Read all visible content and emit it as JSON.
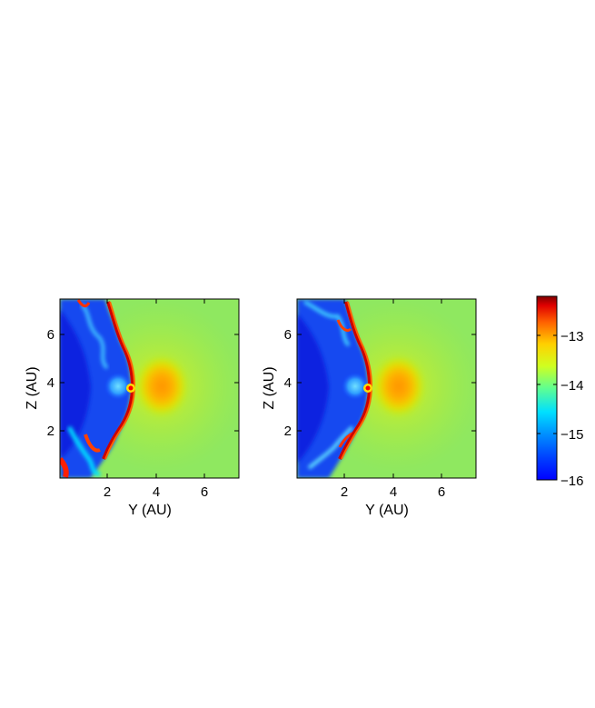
{
  "chart_data": [
    {
      "type": "heatmap",
      "panel": "left",
      "xlabel": "Y (AU)",
      "ylabel": "Z (AU)",
      "xlim": [
        0,
        7.5
      ],
      "ylim": [
        0,
        7.5
      ],
      "xticks": [
        2,
        4,
        6
      ],
      "yticks": [
        2,
        4,
        6
      ],
      "xtick_labels": [
        "2",
        "4",
        "6"
      ],
      "ytick_labels": [
        "2",
        "4",
        "6"
      ],
      "features": {
        "bow_shock_center": [
          2.9,
          3.7
        ],
        "bow_shock_front_y": 3.3,
        "bright_core_extent_y": [
          3.2,
          4.8
        ],
        "bright_core_extent_z": [
          2.3,
          5.0
        ],
        "ambient_log_value": -14.0,
        "core_log_value": -13.4,
        "cavity_log_value": -15.9
      }
    },
    {
      "type": "heatmap",
      "panel": "right",
      "xlabel": "Y (AU)",
      "ylabel": "Z (AU)",
      "xlim": [
        0,
        7.5
      ],
      "ylim": [
        0,
        7.5
      ],
      "xticks": [
        2,
        4,
        6
      ],
      "yticks": [
        2,
        4,
        6
      ],
      "xtick_labels": [
        "2",
        "4",
        "6"
      ],
      "ytick_labels": [
        "2",
        "4",
        "6"
      ],
      "features": {
        "bow_shock_center": [
          2.9,
          3.7
        ],
        "bow_shock_front_y": 3.3,
        "bright_core_extent_y": [
          3.2,
          4.8
        ],
        "bright_core_extent_z": [
          2.3,
          5.0
        ],
        "ambient_log_value": -14.0,
        "core_log_value": -13.4,
        "cavity_log_value": -15.9
      }
    }
  ],
  "colorbar": {
    "colormap": "jet",
    "range": [
      -16,
      -12.2
    ],
    "ticks": [
      -13,
      -14,
      -15,
      -16
    ],
    "tick_labels": [
      "−13",
      "−14",
      "−15",
      "−16"
    ]
  }
}
